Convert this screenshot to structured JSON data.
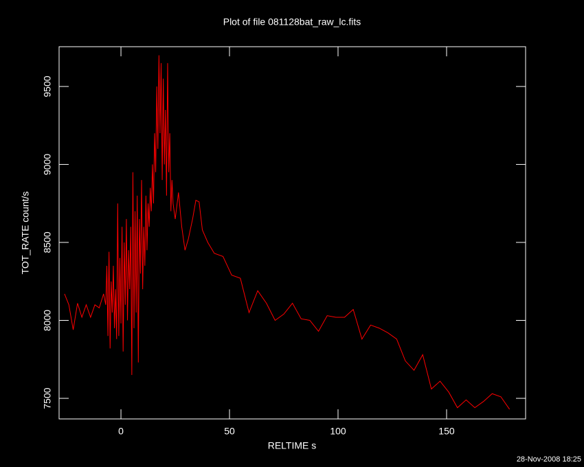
{
  "chart_data": {
    "type": "line",
    "title": "Plot of file 081128bat_raw_lc.fits",
    "xlabel": "RELTIME  s",
    "ylabel": "TOT_RATE  count/s",
    "timestamp": "28-Nov-2008 18:25",
    "color": "#ff0000",
    "xlim": [
      -28.5,
      186.4
    ],
    "ylim": [
      7368,
      9755
    ],
    "xticks": [
      0,
      50,
      100,
      150
    ],
    "yticks": [
      7500,
      8000,
      8500,
      9000,
      9500
    ],
    "x": [
      -26,
      -24,
      -22,
      -20,
      -18,
      -16,
      -14,
      -12,
      -10,
      -8,
      -7,
      -6.5,
      -6,
      -5.5,
      -5,
      -4.5,
      -4,
      -3.5,
      -3,
      -2.5,
      -2,
      -1.5,
      -1,
      -0.5,
      0,
      0.5,
      1,
      1.5,
      2,
      2.5,
      3,
      3.5,
      4,
      4.5,
      5,
      5.5,
      6,
      6.5,
      7,
      7.5,
      8,
      8.5,
      9,
      9.5,
      10,
      10.5,
      11,
      11.5,
      12,
      12.5,
      13,
      13.5,
      14,
      14.5,
      15,
      15.5,
      16,
      16.5,
      17,
      17.5,
      18,
      18.5,
      19,
      19.5,
      20,
      20.5,
      21,
      21.5,
      22,
      22.5,
      23,
      23.5,
      24,
      25,
      26.5,
      28,
      29.5,
      31,
      33,
      34.5,
      36,
      37.5,
      40,
      43,
      47,
      51,
      55,
      59,
      63,
      67,
      71,
      75,
      79,
      83,
      87,
      91,
      95,
      99,
      103,
      107,
      111,
      115,
      119,
      123,
      127,
      131,
      135,
      139,
      143,
      147,
      151,
      155,
      159,
      163,
      167,
      171,
      175,
      179
    ],
    "values": [
      8170,
      8100,
      7940,
      8110,
      8020,
      8100,
      8020,
      8100,
      8080,
      8170,
      8100,
      8350,
      7900,
      8440,
      7820,
      8250,
      8050,
      8350,
      7950,
      8200,
      7880,
      8750,
      7900,
      8400,
      7980,
      8600,
      7800,
      8500,
      8100,
      8650,
      8000,
      8450,
      8200,
      8600,
      7650,
      8950,
      7950,
      8700,
      8050,
      8800,
      7730,
      8650,
      8300,
      8900,
      8200,
      8600,
      8350,
      8800,
      8450,
      8750,
      8600,
      8850,
      8700,
      9000,
      8750,
      9200,
      8950,
      9500,
      9100,
      9700,
      9200,
      9650,
      8900,
      9550,
      9000,
      9350,
      8800,
      9650,
      8950,
      9200,
      8700,
      8900,
      8750,
      8650,
      8820,
      8600,
      8450,
      8520,
      8650,
      8770,
      8760,
      8580,
      8500,
      8430,
      8410,
      8290,
      8270,
      8050,
      8190,
      8110,
      8000,
      8040,
      8110,
      8010,
      8000,
      7930,
      8030,
      8020,
      8020,
      8070,
      7880,
      7970,
      7950,
      7920,
      7880,
      7740,
      7680,
      7780,
      7560,
      7610,
      7540,
      7440,
      7490,
      7440,
      7480,
      7530,
      7510,
      7430
    ]
  }
}
